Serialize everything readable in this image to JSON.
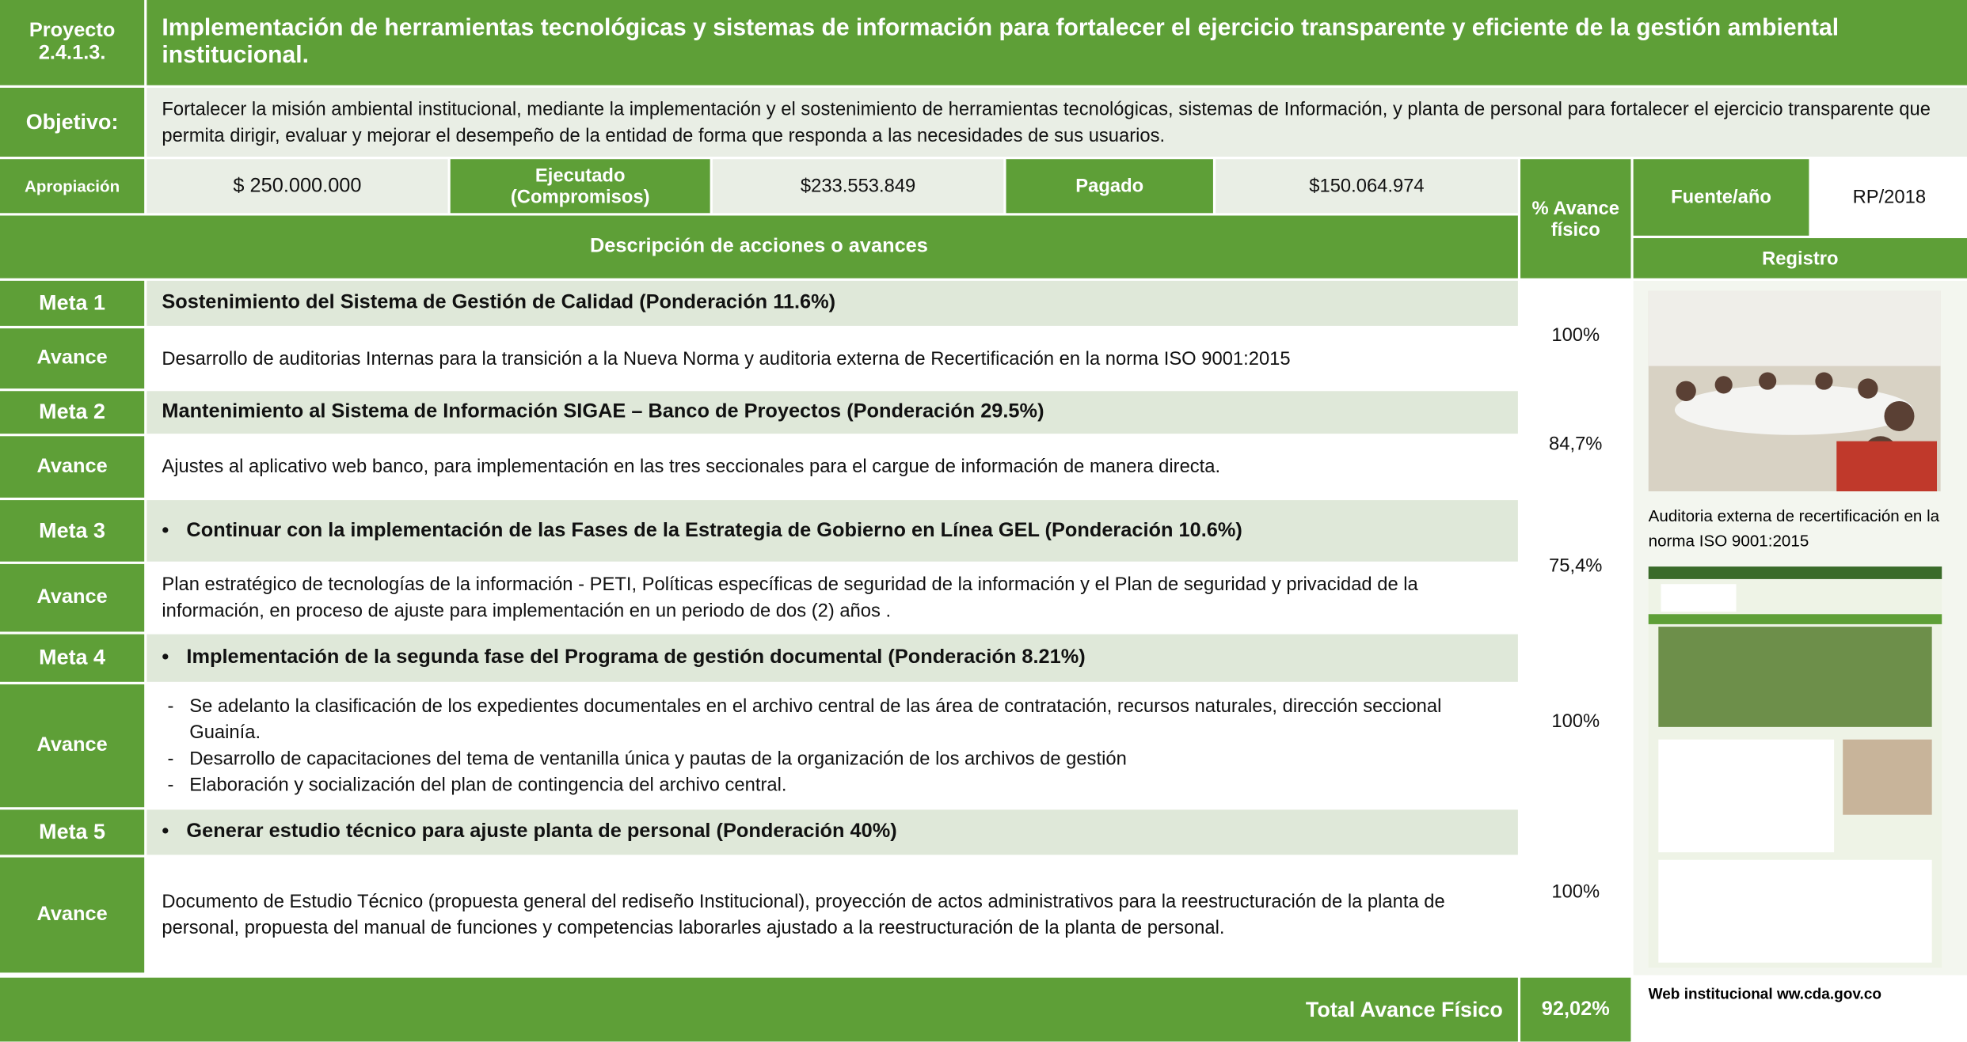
{
  "header": {
    "project_label": "Proyecto 2.4.1.3.",
    "title": "Implementación de herramientas tecnológicas y sistemas de información para fortalecer el ejercicio transparente y eficiente de la gestión ambiental institucional."
  },
  "objective": {
    "label": "Objetivo:",
    "text": "Fortalecer la misión ambiental institucional, mediante la implementación y el sostenimiento de herramientas tecnológicas, sistemas de Información, y planta de personal  para fortalecer el ejercicio transparente que permita dirigir, evaluar y mejorar el desempeño de la entidad de forma que responda a las necesidades de sus usuarios."
  },
  "budget": {
    "appropriation_label": "Apropiación",
    "appropriation": "$ 250.000.000",
    "executed_label": "Ejecutado (Compromisos)",
    "executed": "$233.553.849",
    "paid_label": "Pagado",
    "paid": "$150.064.974"
  },
  "table": {
    "description_header": "Descripción de acciones o avances",
    "progress_header": "% Avance físico",
    "source_label": "Fuente/año",
    "source": "RP/2018",
    "record_header": "Registro",
    "goals": [
      {
        "label": "Meta 1",
        "title": "Sostenimiento del Sistema de Gestión de Calidad (Ponderación 11.6%)",
        "bullet": false,
        "advance_label": "Avance",
        "advance": [
          "Desarrollo de auditorias Internas para la transición a la Nueva Norma y auditoria externa de Recertificación en la norma  ISO 9001:2015"
        ],
        "progress": "100%"
      },
      {
        "label": "Meta 2",
        "title": "Mantenimiento al Sistema de Información SIGAE – Banco de Proyectos (Ponderación 29.5%)",
        "bullet": false,
        "advance_label": "Avance",
        "advance": [
          "Ajustes al aplicativo web banco, para implementación en las tres seccionales para el cargue de información de manera directa."
        ],
        "progress": "84,7%"
      },
      {
        "label": "Meta 3",
        "title": "Continuar con  la implementación  de las Fases de la Estrategia de Gobierno en Línea GEL (Ponderación 10.6%)",
        "bullet": true,
        "advance_label": "Avance",
        "advance": [
          "Plan estratégico de tecnologías de la información - PETI, Políticas específicas de seguridad de la información y el Plan de seguridad y privacidad de la información, en proceso de ajuste para implementación en un periodo de dos (2) años ."
        ],
        "progress": "75,4%"
      },
      {
        "label": "Meta 4",
        "title": "Implementación de la segunda fase del Programa de gestión documental  (Ponderación 8.21%)",
        "bullet": true,
        "advance_label": "Avance",
        "advance": [
          "Se adelanto la clasificación de los expedientes documentales en el archivo central de las área de contratación, recursos naturales, dirección seccional Guainía.",
          "Desarrollo de capacitaciones del tema de ventanilla única y pautas de la organización de los archivos de gestión",
          "Elaboración y socialización del plan de contingencia del archivo central."
        ],
        "progress": "100%"
      },
      {
        "label": "Meta 5",
        "title": "Generar estudio técnico para ajuste planta de personal (Ponderación 40%)",
        "bullet": true,
        "advance_label": "Avance",
        "advance": [
          "Documento de Estudio Técnico (propuesta general del rediseño Institucional), proyección de actos administrativos para la reestructuración de la planta de personal, propuesta del manual de funciones y competencias laborarles ajustado a la reestructuración de la planta de personal."
        ],
        "progress": "100%"
      }
    ],
    "total_label": "Total Avance Físico",
    "total": "92,02%"
  },
  "record": {
    "photo_caption": "Auditoria externa de recertificación en la norma  ISO 9001:2015",
    "web_caption": "Web institucional ww.cda.gov.co"
  }
}
